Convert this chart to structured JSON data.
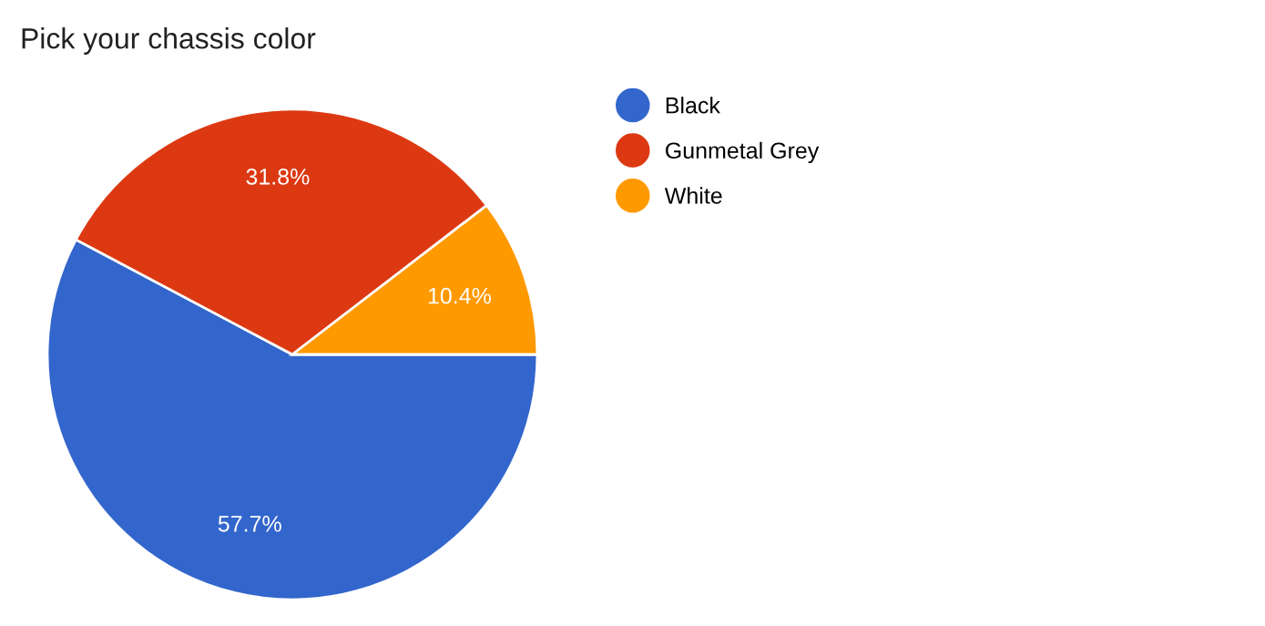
{
  "chart_data": {
    "type": "pie",
    "title": "Pick your chassis color",
    "categories": [
      "Black",
      "Gunmetal Grey",
      "White"
    ],
    "values": [
      57.7,
      31.8,
      10.4
    ],
    "colors": [
      "#3366cc",
      "#dc3912",
      "#ff9900"
    ],
    "value_labels": [
      "57.7%",
      "31.8%",
      "10.4%"
    ],
    "legend": "right"
  }
}
